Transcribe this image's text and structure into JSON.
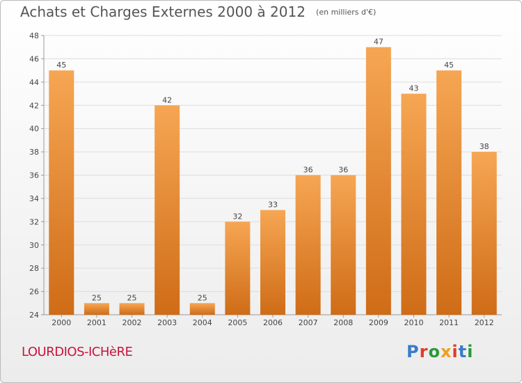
{
  "title": "Achats et Charges Externes 2000 à 2012",
  "unit_note": "(en milliers d'€)",
  "commune": "LOURDIOS-ICHèRE",
  "brand": "Proxiti",
  "colors": {
    "bar_top": "#f6a653",
    "bar_bottom": "#cf6c17",
    "commune_text": "#c8143c",
    "grid": "#dddddd",
    "brand_letters": [
      "#3a7cc8",
      "#e03a2a",
      "#2a9a3a",
      "#f0a020",
      "#e03a2a",
      "#3a7cc8",
      "#2a9a3a"
    ]
  },
  "chart_data": {
    "type": "bar",
    "title": "Achats et Charges Externes 2000 à 2012",
    "subtitle": "(en milliers d'€)",
    "categories": [
      "2000",
      "2001",
      "2002",
      "2003",
      "2004",
      "2005",
      "2006",
      "2007",
      "2008",
      "2009",
      "2010",
      "2011",
      "2012"
    ],
    "values": [
      45,
      25,
      25,
      42,
      25,
      32,
      33,
      36,
      36,
      47,
      43,
      45,
      38
    ],
    "ylim": [
      24,
      48
    ],
    "yticks": [
      24,
      26,
      28,
      30,
      32,
      34,
      36,
      38,
      40,
      42,
      44,
      46,
      48
    ],
    "grid": true,
    "xlabel": "",
    "ylabel": ""
  }
}
